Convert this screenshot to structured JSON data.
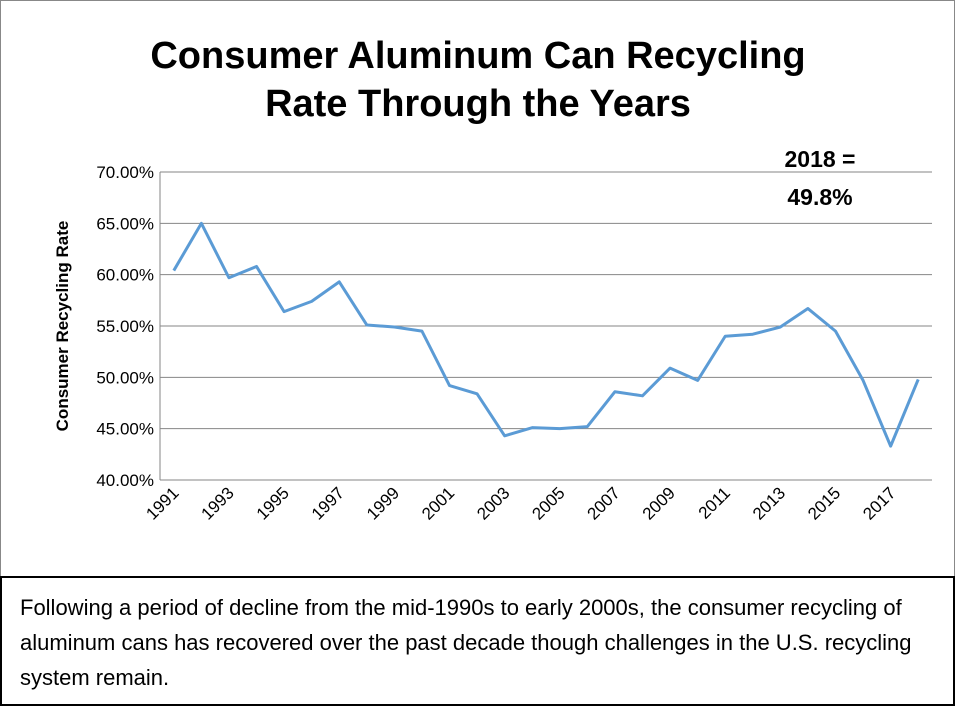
{
  "chart_data": {
    "type": "line",
    "title": "Consumer Aluminum Can Recycling Rate Through the Years",
    "y_label": "Consumer Recycling Rate",
    "annotation": "2018 = 49.8%",
    "categories": [
      "1991",
      null,
      "1993",
      null,
      "1995",
      null,
      "1997",
      null,
      "1999",
      null,
      "2001",
      null,
      "2003",
      null,
      "2005",
      null,
      "2007",
      null,
      "2009",
      null,
      "2011",
      null,
      "2013",
      null,
      "2015",
      null,
      "2017",
      null
    ],
    "values": [
      60.4,
      65.0,
      59.7,
      60.8,
      56.4,
      57.4,
      59.3,
      55.1,
      54.9,
      54.5,
      49.2,
      48.4,
      44.3,
      45.1,
      45.0,
      45.2,
      48.6,
      48.2,
      50.9,
      49.7,
      54.0,
      54.2,
      54.9,
      56.7,
      54.5,
      49.7,
      43.3,
      49.8
    ],
    "color": "#5b9bd5",
    "ylim": [
      40,
      70
    ],
    "yticks": [
      {
        "value": 40,
        "label": "40.00%"
      },
      {
        "value": 45,
        "label": "45.00%"
      },
      {
        "value": 50,
        "label": "50.00%"
      },
      {
        "value": 55,
        "label": "55.00%"
      },
      {
        "value": 60,
        "label": "60.00%"
      },
      {
        "value": 65,
        "label": "65.00%"
      },
      {
        "value": 70,
        "label": "70.00%"
      }
    ],
    "grid": true
  },
  "caption": "Following a period of decline from the mid-1990s to early 2000s, the consumer recycling of aluminum cans has recovered over the past decade though challenges in the U.S. recycling system remain."
}
